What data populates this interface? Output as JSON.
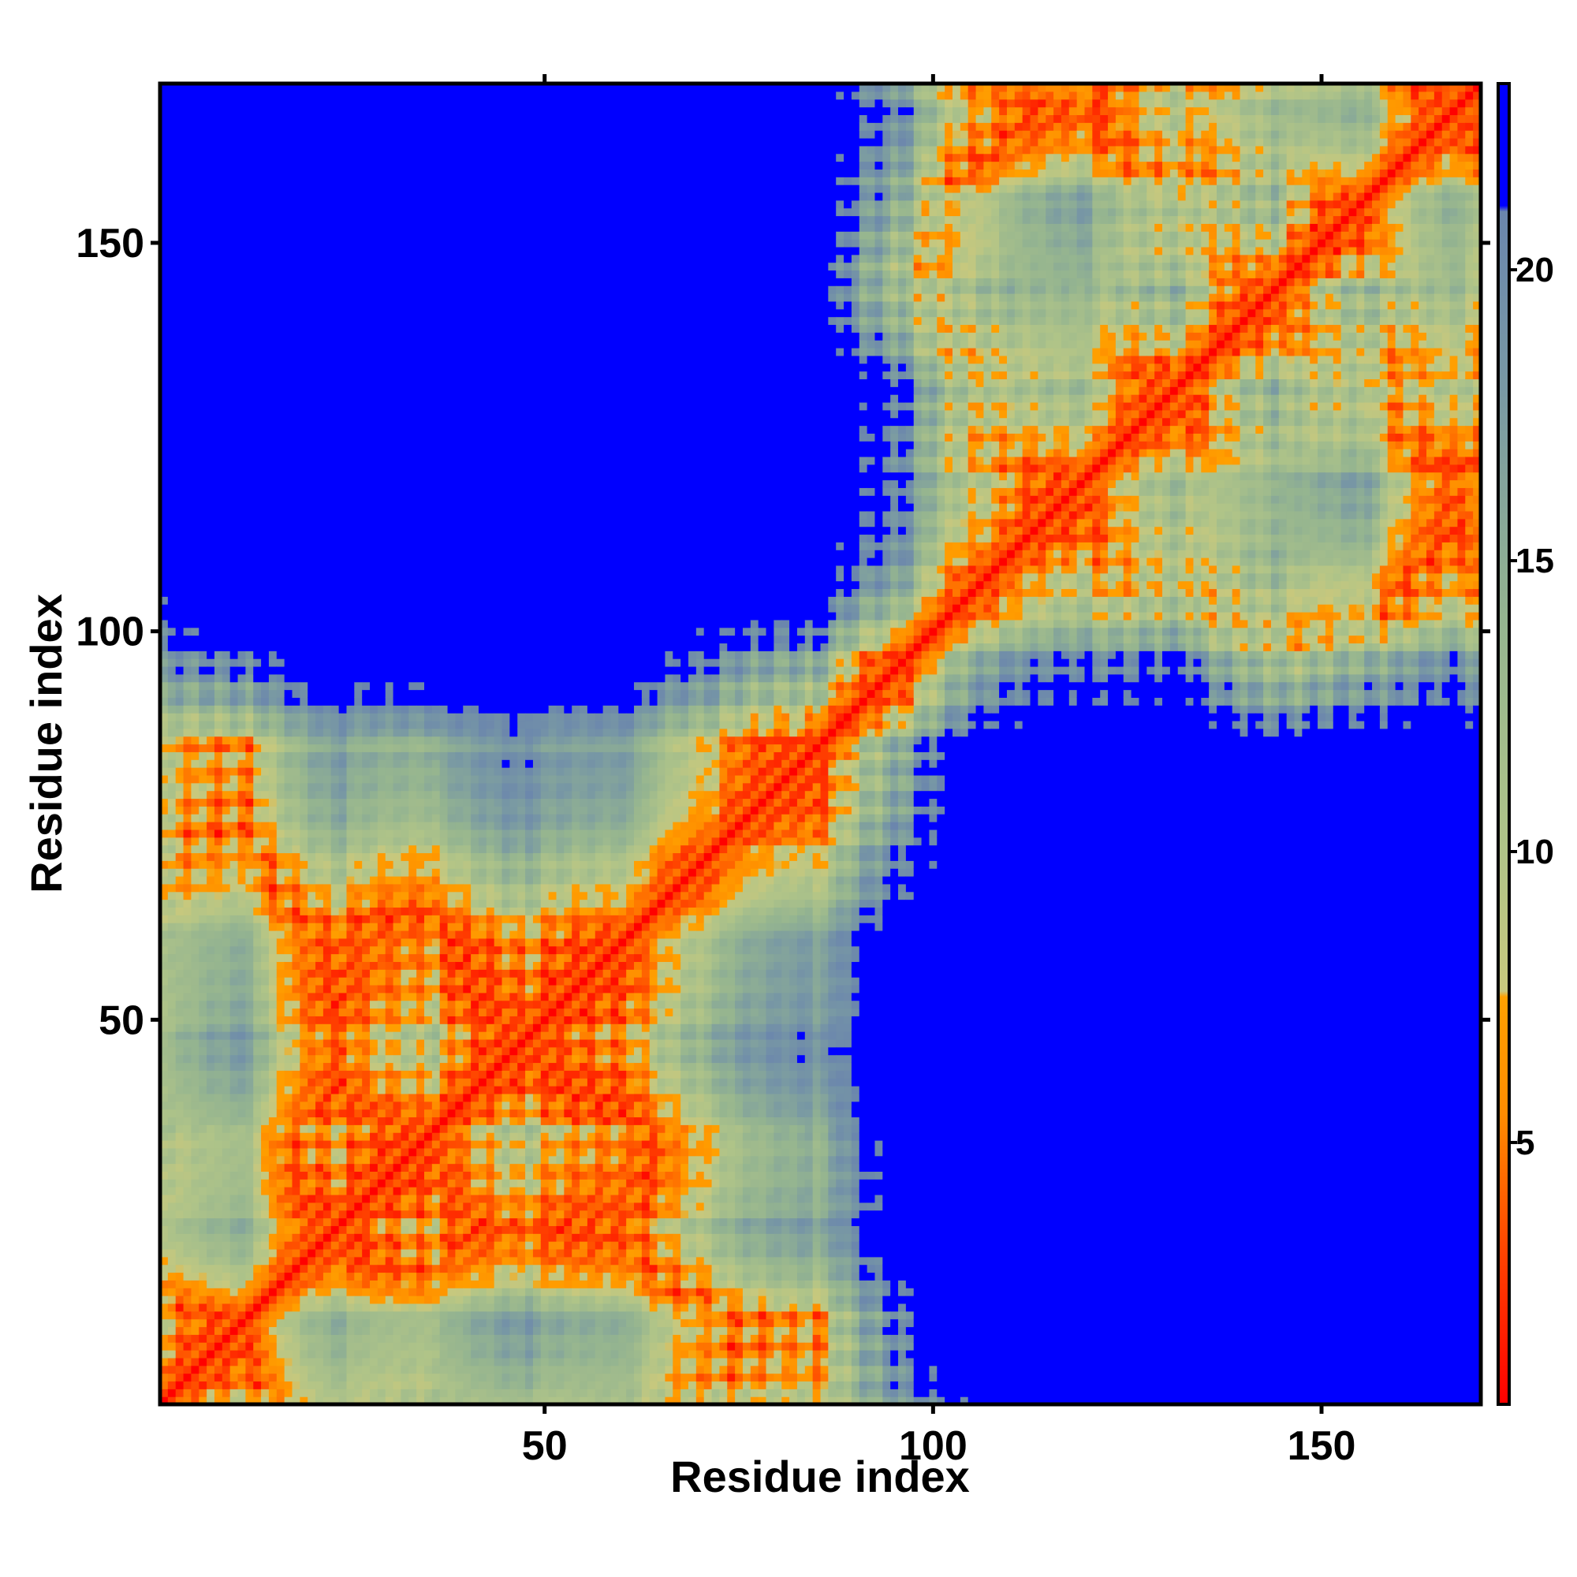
{
  "chart_data": {
    "type": "heatmap",
    "title": "",
    "xlabel": "Residue index",
    "ylabel": "Residue index",
    "n_residues": 170,
    "xlim": [
      0.5,
      170.5
    ],
    "ylim": [
      0.5,
      170.5
    ],
    "x_ticks": [
      50,
      100,
      150
    ],
    "y_ticks": [
      50,
      100,
      150
    ],
    "x_tick_labels": [
      "50",
      "100",
      "150"
    ],
    "y_tick_labels": [
      "50",
      "100",
      "150"
    ],
    "grid": false,
    "legend": "right",
    "colorbar": {
      "range": [
        0.5,
        23.2
      ],
      "ticks": [
        5,
        10,
        15,
        20
      ],
      "tick_labels": [
        "5",
        "10",
        "15",
        "20"
      ],
      "stops": [
        {
          "value": 0.5,
          "color": "#ff0000"
        },
        {
          "value": 3.0,
          "color": "#ff4000"
        },
        {
          "value": 5.5,
          "color": "#ff8c00"
        },
        {
          "value": 7.5,
          "color": "#ffa000"
        },
        {
          "value": 7.6,
          "color": "#c8c87d"
        },
        {
          "value": 10.0,
          "color": "#b0c488"
        },
        {
          "value": 14.0,
          "color": "#94b490"
        },
        {
          "value": 18.0,
          "color": "#7898a4"
        },
        {
          "value": 21.0,
          "color": "#6b86ad"
        },
        {
          "value": 21.1,
          "color": "#0000ff"
        },
        {
          "value": 23.2,
          "color": "#0000ff"
        }
      ]
    },
    "diagonal_value": 0.5,
    "missing_value_color": "#0000ff",
    "distance_cutoff": 21.0,
    "domains": [
      {
        "name": "",
        "start": 1,
        "end": 86
      },
      {
        "name": "",
        "start": 86,
        "end": 170
      }
    ]
  }
}
